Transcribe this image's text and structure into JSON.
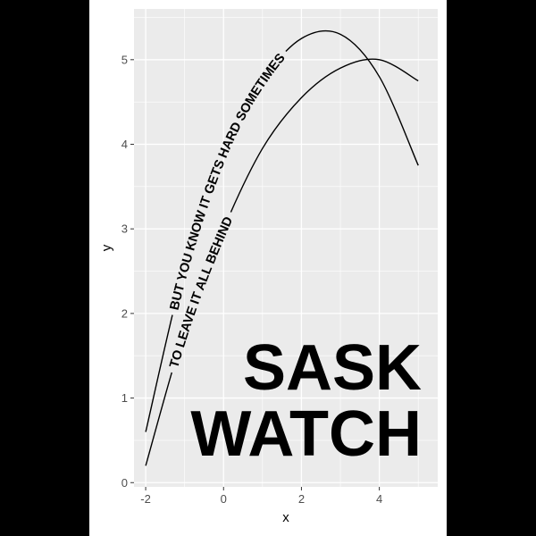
{
  "chart_data": {
    "type": "line",
    "title": "",
    "xlabel": "x",
    "ylabel": "y",
    "xlim": [
      -2.3,
      5.5
    ],
    "ylim": [
      -0.05,
      5.6
    ],
    "x_ticks": [
      -2,
      0,
      2,
      4
    ],
    "x_tick_labels": [
      "-2",
      "0",
      "2",
      "4"
    ],
    "y_ticks": [
      0,
      1,
      2,
      3,
      4,
      5
    ],
    "y_tick_labels": [
      "0",
      "1",
      "2",
      "3",
      "4",
      "5"
    ],
    "grid": true,
    "background": "#ebebeb",
    "grid_color": "#ffffff",
    "line_color": "#000000",
    "series": [
      {
        "label": "BUT YOU KNOW IT GETS HARD SOMETIMES",
        "x": [
          -2,
          -1,
          0,
          1,
          2,
          3,
          4,
          5
        ],
        "y": [
          0.6,
          2.55,
          3.9,
          4.75,
          5.25,
          5.3,
          4.8,
          3.75
        ]
      },
      {
        "label": "TO LEAVE IT ALL BEHIND",
        "x": [
          -2,
          -1,
          0,
          1,
          2,
          3,
          4,
          5
        ],
        "y": [
          0.2,
          1.8,
          3.0,
          3.95,
          4.55,
          4.9,
          5.0,
          4.75
        ]
      }
    ],
    "annotations": [
      "SASK",
      "WATCH"
    ]
  }
}
